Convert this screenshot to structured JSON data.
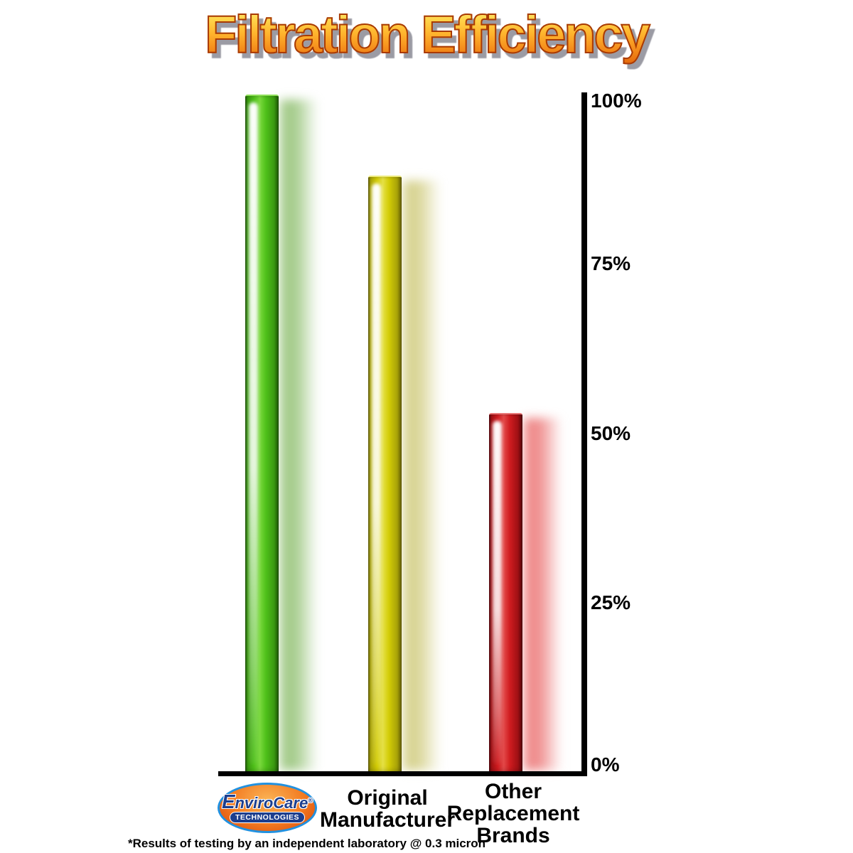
{
  "title": "Filtration Efficiency",
  "chart_data": {
    "type": "bar",
    "title": "Filtration Efficiency",
    "categories": [
      "EnviroCare Technologies",
      "Original Manufacturer",
      "Other Replacement Brands"
    ],
    "values": [
      100,
      88,
      53
    ],
    "value_unit": "percent",
    "ylim": [
      0,
      100
    ],
    "yticks": [
      {
        "label": "100%",
        "value": 100
      },
      {
        "label": "75%",
        "value": 75
      },
      {
        "label": "50%",
        "value": 50
      },
      {
        "label": "25%",
        "value": 25
      },
      {
        "label": "0%",
        "value": 0
      }
    ],
    "grid": false,
    "legend": "none",
    "yaxis_side": "right",
    "bar_colors": [
      "#4fc01a",
      "#d3cc06",
      "#d01c20"
    ]
  },
  "bars": [
    {
      "name": "envirocare",
      "edge": "#215c08",
      "mid": "#3a9a10",
      "bright": "#4fc01a",
      "light": "#79d83c",
      "topline": "#8fe05a",
      "shadow": "rgba(150,195,120,0.85)"
    },
    {
      "name": "original-manufacturer",
      "edge": "#6b6606",
      "mid": "#a9a308",
      "bright": "#d3cc06",
      "light": "#e5e045",
      "topline": "#eeeb7c",
      "shadow": "rgba(210,205,130,0.85)"
    },
    {
      "name": "other-replacement-brands",
      "edge": "#5c070e",
      "mid": "#a01014",
      "bright": "#d01c20",
      "light": "#e24848",
      "topline": "#e87878",
      "shadow": "rgba(238,135,135,0.95)"
    }
  ],
  "logo": {
    "brand": "EnviroCare",
    "registered_mark": "®",
    "subtitle": "TECHNOLOGIES"
  },
  "x_axis_labels": {
    "original_manufacturer": [
      "Original",
      "Manufacturer"
    ],
    "other_replacement_brands": [
      "Other",
      "Replacement",
      "Brands"
    ]
  },
  "footnote": "*Results of testing by an independent laboratory @ 0.3 micron",
  "accent_colors": {
    "title_gradient_top": "#ffd94e",
    "title_gradient_bottom": "#e4670b",
    "title_outline": "#a83a05",
    "title_shadow": "#9b9ba4",
    "axis_color": "#000000",
    "logo_oval_orange": "#f37a20",
    "logo_ring_blue": "#2191e0",
    "logo_navy": "#1c3e8e"
  }
}
